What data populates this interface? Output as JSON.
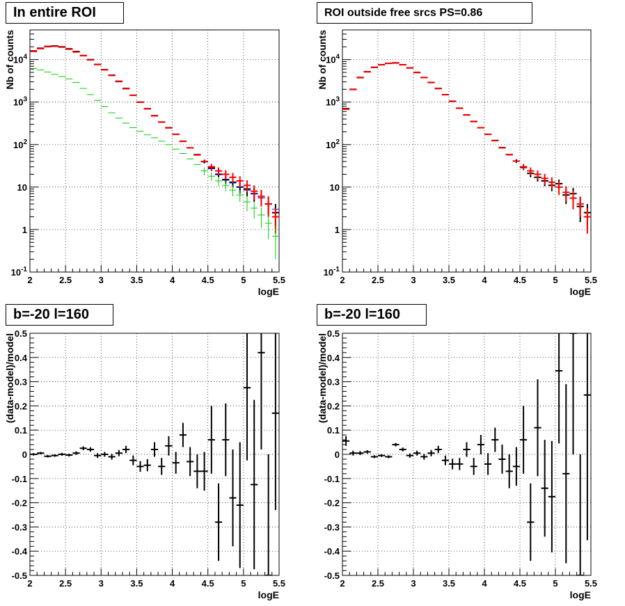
{
  "colors": {
    "data": "#000000",
    "total_model": "#ff0000",
    "model_blue": "#0000ff",
    "model_green": "#00cc00",
    "grid": "#000000"
  },
  "chart_data": [
    {
      "type": "scatter",
      "panel": "top-left",
      "title": "In entire ROI",
      "xlabel": "logE",
      "ylabel": "Nb of counts",
      "xlim": [
        2,
        5.5
      ],
      "ylim": [
        0.1,
        50000
      ],
      "yscale": "log",
      "grid": true,
      "x_ticks": [
        "2",
        "2.5",
        "3",
        "3.5",
        "4",
        "4.5",
        "5",
        "5.5"
      ],
      "y_ticks": [
        "10^-1",
        "1",
        "10",
        "10^2",
        "10^3",
        "10^4"
      ],
      "x": [
        2.05,
        2.15,
        2.25,
        2.35,
        2.45,
        2.55,
        2.65,
        2.75,
        2.85,
        2.95,
        3.05,
        3.15,
        3.25,
        3.35,
        3.45,
        3.55,
        3.65,
        3.75,
        3.85,
        3.95,
        4.05,
        4.15,
        4.25,
        4.35,
        4.45,
        4.55,
        4.65,
        4.75,
        4.85,
        4.95,
        5.05,
        5.15,
        5.25,
        5.35,
        5.45
      ],
      "series": [
        {
          "name": "",
          "color": "#000000",
          "style": "errorbar",
          "values": [
            16000,
            18500,
            20500,
            21000,
            20000,
            18000,
            15500,
            12500,
            10000,
            7700,
            5800,
            4300,
            3100,
            2100,
            1450,
            1000,
            700,
            480,
            340,
            250,
            175,
            120,
            84,
            58,
            40,
            28,
            20,
            15,
            13,
            10,
            9,
            7,
            6,
            4,
            2.5
          ],
          "errors": [
            0,
            0,
            0,
            0,
            0,
            0,
            0,
            0,
            0,
            0,
            0,
            0,
            0,
            0,
            0,
            0,
            0,
            0,
            0,
            0,
            0,
            0,
            0,
            0,
            4,
            4,
            3,
            3,
            3,
            3,
            3,
            2.5,
            2.5,
            2,
            1.5
          ]
        },
        {
          "name": "",
          "color": "#0000ff",
          "style": "errorbar",
          "values": [
            15500,
            18000,
            20000,
            20500,
            19500,
            17500,
            15000,
            12300,
            9800,
            7600,
            5700,
            4200,
            3000,
            2050,
            1430,
            980,
            690,
            470,
            335,
            245,
            172,
            118,
            83,
            57,
            39,
            27,
            19.5,
            14.5,
            12.5,
            10,
            8.5,
            7,
            5.5,
            4,
            3
          ],
          "errors": [
            0,
            0,
            0,
            0,
            0,
            0,
            0,
            0,
            0,
            0,
            0,
            0,
            0,
            0,
            0,
            0,
            0,
            0,
            0,
            0,
            0,
            0,
            0,
            0,
            0,
            0,
            0,
            0,
            0,
            0,
            0,
            0,
            0,
            0,
            0
          ]
        },
        {
          "name": "",
          "color": "#ff0000",
          "style": "errorbar",
          "values": [
            15600,
            18100,
            20100,
            20600,
            19600,
            17600,
            15100,
            12350,
            9850,
            7650,
            5750,
            4250,
            3050,
            2070,
            1440,
            990,
            695,
            475,
            338,
            247,
            174,
            119,
            84,
            57,
            40,
            30,
            24,
            20,
            17,
            14,
            11,
            8,
            6,
            4,
            2
          ],
          "errors": [
            0,
            0,
            0,
            0,
            0,
            0,
            0,
            0,
            0,
            0,
            0,
            0,
            0,
            0,
            0,
            0,
            0,
            0,
            0,
            0,
            0,
            0,
            0,
            0,
            0,
            5,
            5,
            5,
            4.5,
            4,
            3.5,
            3,
            2.5,
            2,
            1.2
          ]
        },
        {
          "name": "",
          "color": "#00cc00",
          "style": "errorbar",
          "values": [
            6200,
            5700,
            5100,
            4500,
            4000,
            3500,
            2900,
            2100,
            1500,
            1100,
            780,
            560,
            420,
            320,
            250,
            205,
            170,
            145,
            120,
            100,
            78,
            62,
            46,
            34,
            24,
            18,
            14,
            11,
            8.5,
            6.5,
            4.5,
            3.2,
            2.2,
            1.4,
            0.7
          ],
          "errors": [
            0,
            0,
            0,
            0,
            0,
            0,
            0,
            0,
            0,
            0,
            0,
            0,
            0,
            0,
            0,
            0,
            0,
            0,
            0,
            0,
            0,
            0,
            0,
            0,
            5,
            4,
            3.5,
            3,
            2.5,
            2,
            1.8,
            1.4,
            1.1,
            0.8,
            0.5
          ]
        }
      ]
    },
    {
      "type": "scatter",
      "panel": "top-right",
      "title": "ROI outside free srcs PS=0.86",
      "xlabel": "logE",
      "ylabel": "Nb of counts",
      "xlim": [
        2,
        5.5
      ],
      "ylim": [
        0.1,
        50000
      ],
      "yscale": "log",
      "grid": true,
      "x_ticks": [
        "2",
        "2.5",
        "3",
        "3.5",
        "4",
        "4.5",
        "5",
        "5.5"
      ],
      "y_ticks": [
        "10^-1",
        "1",
        "10",
        "10^2",
        "10^3",
        "10^4"
      ],
      "x": [
        2.05,
        2.15,
        2.25,
        2.35,
        2.45,
        2.55,
        2.65,
        2.75,
        2.85,
        2.95,
        3.05,
        3.15,
        3.25,
        3.35,
        3.45,
        3.55,
        3.65,
        3.75,
        3.85,
        3.95,
        4.05,
        4.15,
        4.25,
        4.35,
        4.45,
        4.55,
        4.65,
        4.75,
        4.85,
        4.95,
        5.05,
        5.15,
        5.25,
        5.35,
        5.45
      ],
      "series": [
        {
          "name": "",
          "color": "#000000",
          "style": "errorbar",
          "values": [
            700,
            2000,
            3800,
            5200,
            6600,
            7600,
            8200,
            8400,
            7600,
            6400,
            5000,
            3800,
            2900,
            2100,
            1500,
            1050,
            720,
            500,
            350,
            250,
            175,
            125,
            85,
            58,
            41,
            29,
            21,
            17,
            14,
            11,
            12,
            6.5,
            7,
            3.5,
            2.5
          ],
          "errors": [
            0,
            0,
            0,
            0,
            0,
            0,
            0,
            0,
            0,
            0,
            0,
            0,
            0,
            0,
            0,
            0,
            0,
            0,
            0,
            0,
            0,
            0,
            0,
            0,
            4,
            4,
            4,
            3.5,
            3.5,
            3,
            3,
            2.5,
            2.5,
            2,
            1.5
          ]
        },
        {
          "name": "",
          "color": "#ff0000",
          "style": "errorbar",
          "values": [
            680,
            1980,
            3750,
            5150,
            6550,
            7550,
            8150,
            8300,
            7550,
            6350,
            4950,
            3780,
            2880,
            2080,
            1490,
            1040,
            715,
            498,
            348,
            249,
            174,
            124,
            84,
            58,
            41,
            30,
            24,
            20,
            16,
            13,
            10,
            7.5,
            5.5,
            4,
            2
          ],
          "errors": [
            0,
            0,
            0,
            0,
            0,
            0,
            0,
            0,
            0,
            0,
            0,
            0,
            0,
            0,
            0,
            0,
            0,
            0,
            0,
            0,
            0,
            0,
            0,
            0,
            0,
            5,
            5,
            4.5,
            4.5,
            4,
            3.5,
            3,
            2.5,
            2,
            1.2
          ]
        }
      ]
    },
    {
      "type": "scatter",
      "panel": "bottom-left",
      "title": "b=-20 l=160",
      "xlabel": "logE",
      "ylabel": "(data-model)/model",
      "xlim": [
        2,
        5.5
      ],
      "ylim": [
        -0.5,
        0.5
      ],
      "grid": true,
      "x_ticks": [
        "2",
        "2.5",
        "3",
        "3.5",
        "4",
        "4.5",
        "5",
        "5.5"
      ],
      "y_ticks": [
        "-0.5",
        "-0.4",
        "-0.3",
        "-0.2",
        "-0.1",
        "0",
        "0.1",
        "0.2",
        "0.3",
        "0.4",
        "0.5"
      ],
      "x": [
        2.05,
        2.15,
        2.25,
        2.35,
        2.45,
        2.55,
        2.65,
        2.75,
        2.85,
        2.95,
        3.05,
        3.15,
        3.25,
        3.35,
        3.45,
        3.55,
        3.65,
        3.75,
        3.85,
        3.95,
        4.05,
        4.15,
        4.25,
        4.35,
        4.45,
        4.55,
        4.65,
        4.75,
        4.85,
        4.95,
        5.05,
        5.15,
        5.25,
        5.35,
        5.45
      ],
      "series": [
        {
          "name": "",
          "color": "#000000",
          "style": "errorbar",
          "values": [
            0.0,
            0.005,
            -0.008,
            -0.005,
            0.0,
            -0.003,
            0.005,
            0.025,
            0.02,
            -0.005,
            0.0,
            -0.01,
            0.005,
            0.02,
            -0.025,
            -0.05,
            -0.045,
            0.02,
            -0.05,
            0.035,
            -0.035,
            0.08,
            -0.03,
            -0.07,
            -0.07,
            0.06,
            -0.28,
            0.06,
            -0.18,
            -0.21,
            0.275,
            -0.125,
            0.42,
            -0.5,
            0.17
          ],
          "errors": [
            0.005,
            0.005,
            0.005,
            0.005,
            0.006,
            0.006,
            0.007,
            0.008,
            0.009,
            0.01,
            0.01,
            0.012,
            0.013,
            0.015,
            0.02,
            0.022,
            0.025,
            0.03,
            0.035,
            0.04,
            0.045,
            0.05,
            0.06,
            0.07,
            0.08,
            0.14,
            0.16,
            0.15,
            0.2,
            0.26,
            0.3,
            0.35,
            0.4,
            0.5,
            0.4
          ]
        }
      ]
    },
    {
      "type": "scatter",
      "panel": "bottom-right",
      "title": "b=-20 l=160",
      "xlabel": "logE",
      "ylabel": "(data-model)/model",
      "xlim": [
        2,
        5.5
      ],
      "ylim": [
        -0.5,
        0.5
      ],
      "grid": true,
      "x_ticks": [
        "2",
        "2.5",
        "3",
        "3.5",
        "4",
        "4.5",
        "5",
        "5.5"
      ],
      "y_ticks": [
        "-0.5",
        "-0.4",
        "-0.3",
        "-0.2",
        "-0.1",
        "0",
        "0.1",
        "0.2",
        "0.3",
        "0.4",
        "0.5"
      ],
      "x": [
        2.05,
        2.15,
        2.25,
        2.35,
        2.45,
        2.55,
        2.65,
        2.75,
        2.85,
        2.95,
        3.05,
        3.15,
        3.25,
        3.35,
        3.45,
        3.55,
        3.65,
        3.75,
        3.85,
        3.95,
        4.05,
        4.15,
        4.25,
        4.35,
        4.45,
        4.55,
        4.65,
        4.75,
        4.85,
        4.95,
        5.05,
        5.15,
        5.25,
        5.35,
        5.45
      ],
      "series": [
        {
          "name": "",
          "color": "#000000",
          "style": "errorbar",
          "values": [
            0.055,
            0.005,
            0.005,
            0.01,
            -0.01,
            -0.005,
            -0.01,
            0.04,
            0.02,
            -0.005,
            0.005,
            -0.01,
            0.005,
            0.02,
            -0.025,
            -0.04,
            -0.04,
            0.02,
            -0.05,
            0.04,
            -0.04,
            0.06,
            -0.02,
            -0.07,
            -0.05,
            0.06,
            -0.28,
            0.11,
            -0.14,
            -0.175,
            0.345,
            -0.08,
            0.5,
            -0.5,
            0.245
          ],
          "errors": [
            0.02,
            0.01,
            0.008,
            0.007,
            0.006,
            0.006,
            0.006,
            0.007,
            0.008,
            0.009,
            0.01,
            0.012,
            0.013,
            0.015,
            0.02,
            0.022,
            0.025,
            0.03,
            0.035,
            0.04,
            0.045,
            0.05,
            0.06,
            0.07,
            0.08,
            0.14,
            0.16,
            0.2,
            0.2,
            0.23,
            0.3,
            0.37,
            0.5,
            0.5,
            0.6
          ]
        }
      ]
    }
  ]
}
